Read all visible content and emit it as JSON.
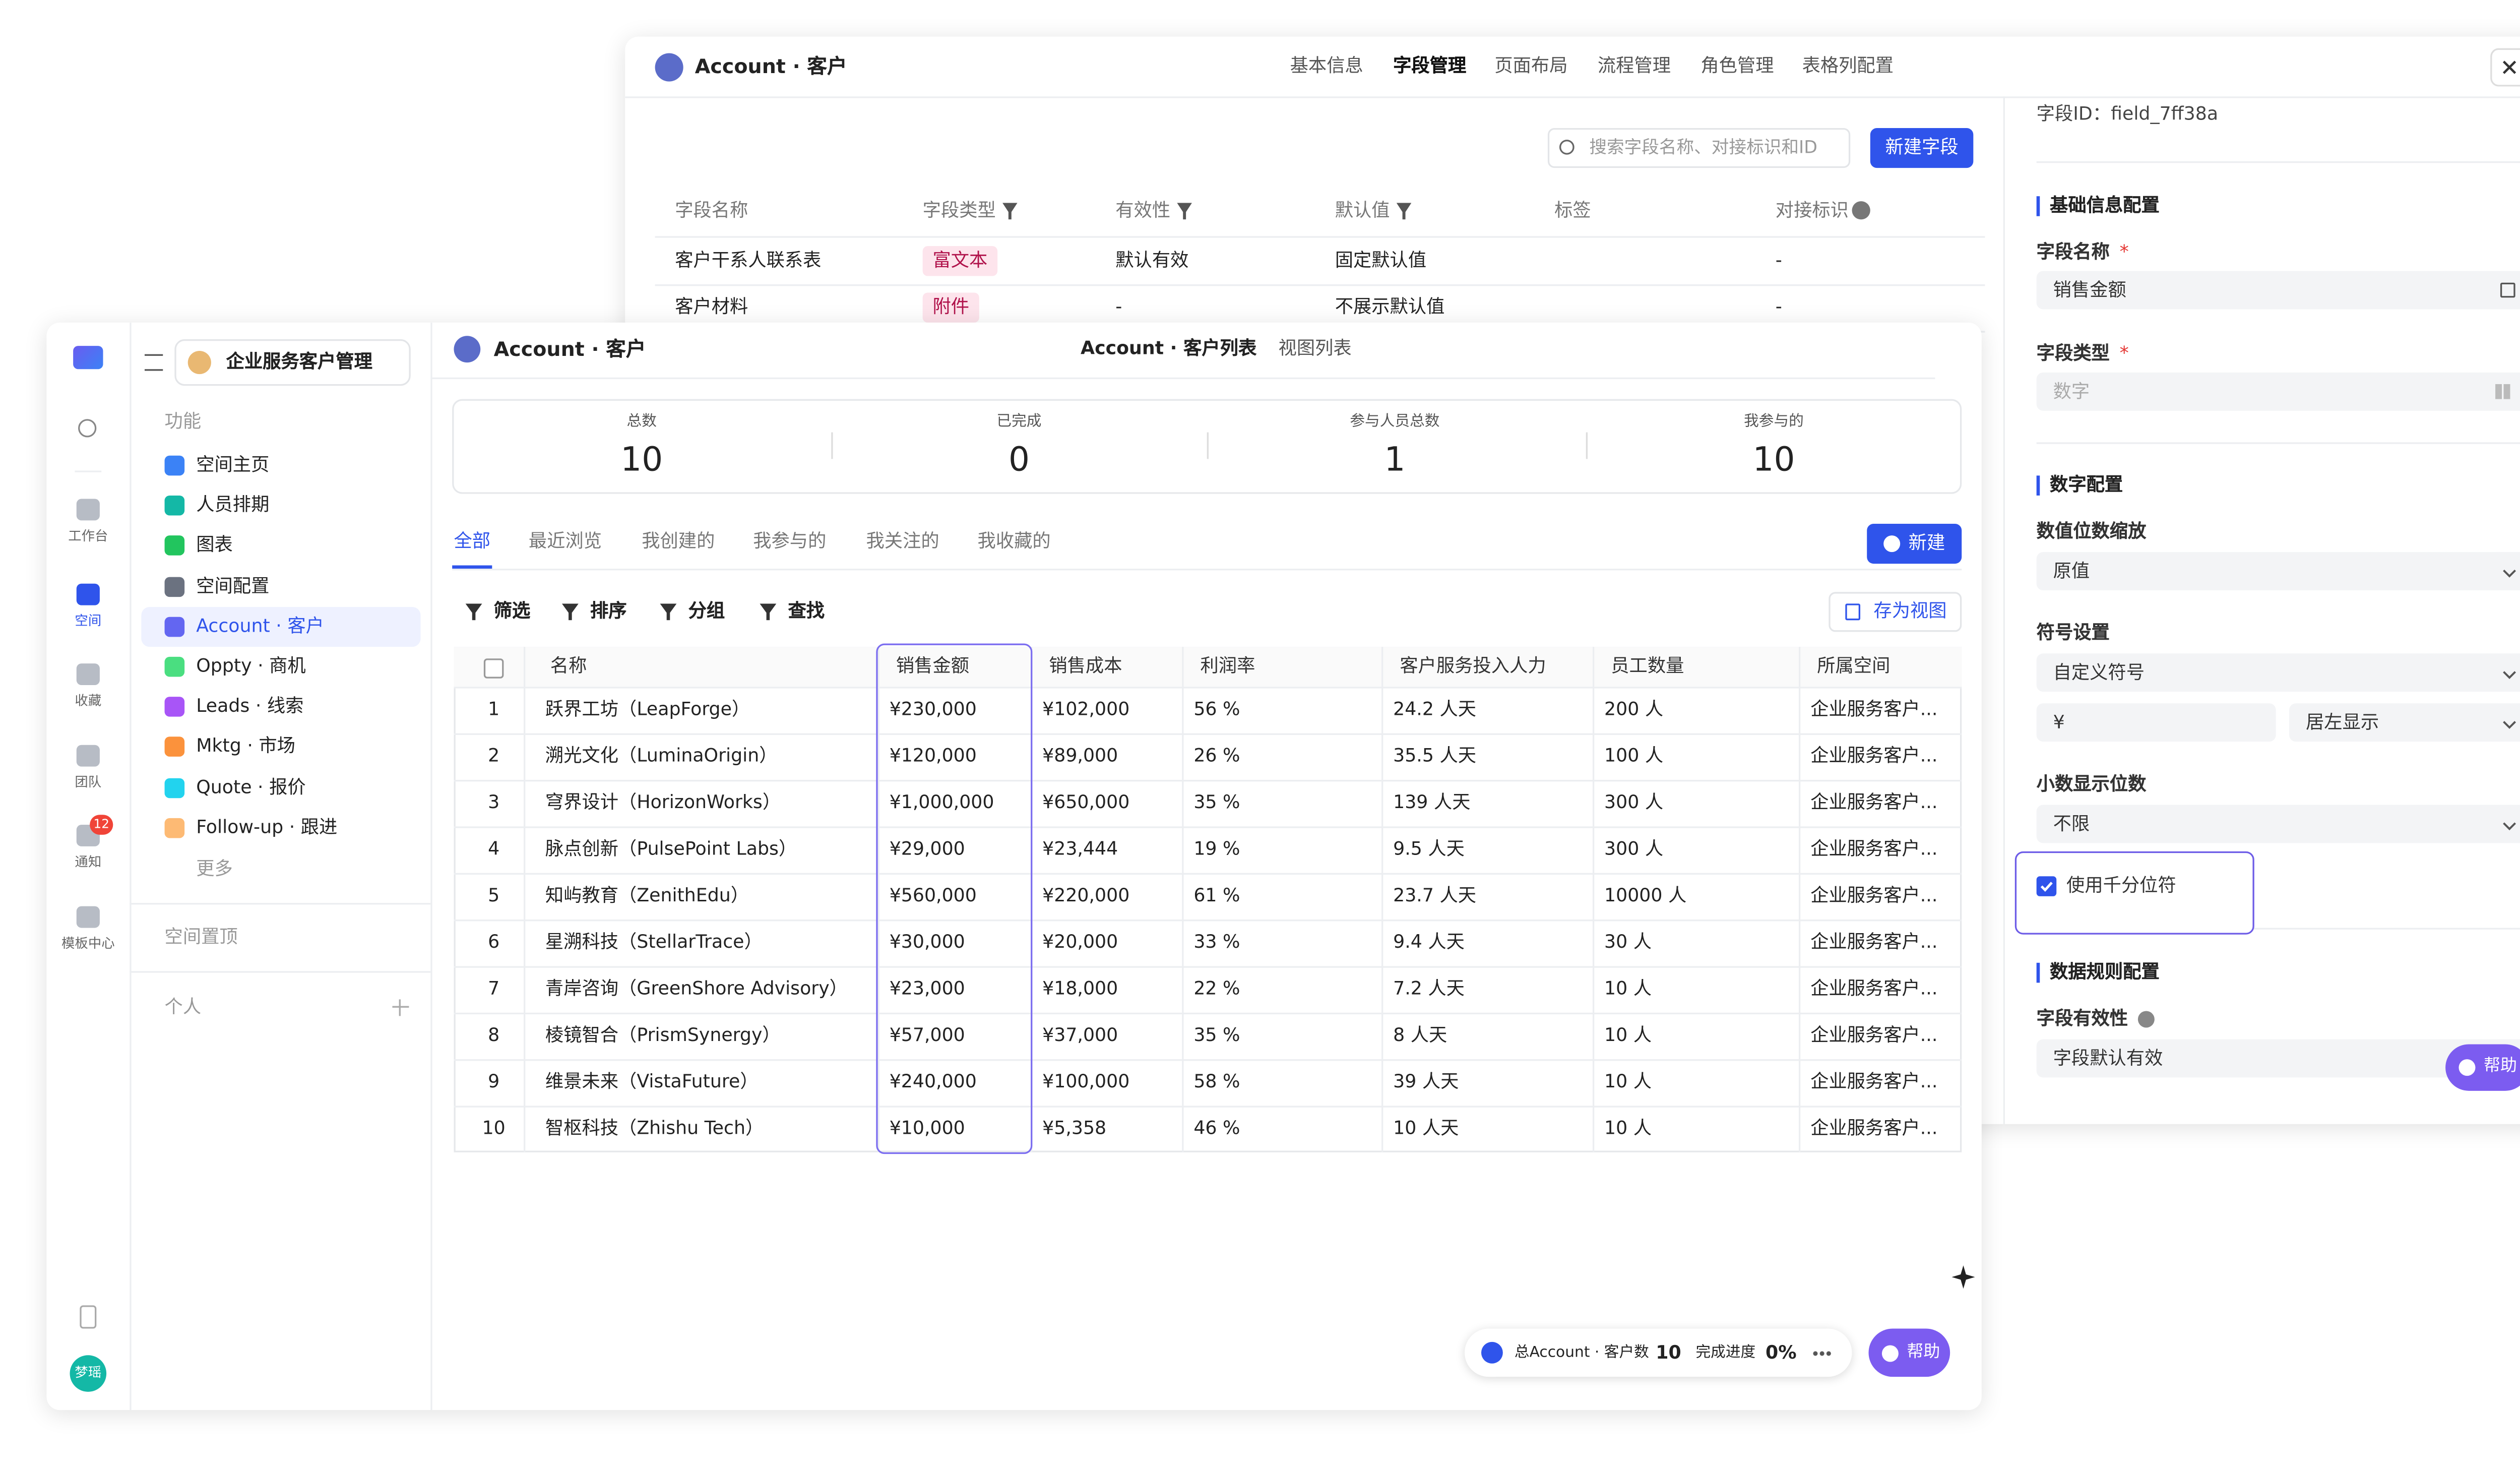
{
  "back_window": {
    "title": "Account · 客户",
    "tabs": [
      "基本信息",
      "字段管理",
      "页面布局",
      "流程管理",
      "角色管理",
      "表格列配置"
    ],
    "search_placeholder": "搜索字段名称、对接标识和ID",
    "new_field_button": "新建字段",
    "columns": [
      "字段名称",
      "字段类型",
      "有效性",
      "默认值",
      "标签",
      "对接标识"
    ],
    "rows": [
      {
        "name": "客户干系人联系表",
        "type": "富文本",
        "validity": "默认有效",
        "default": "固定默认值",
        "key": "-"
      },
      {
        "name": "客户材料",
        "type": "附件",
        "validity": "-",
        "default": "不展示默认值",
        "key": "-"
      }
    ]
  },
  "field_panel": {
    "field_id": "字段ID：field_7ff38a",
    "required_mark": "*",
    "basic": {
      "title": "基础信息配置",
      "name_label": "字段名称",
      "name_value": "销售金额",
      "type_label": "字段类型",
      "type_placeholder": "数字"
    },
    "number": {
      "title": "数字配置",
      "scale_label": "数值位数缩放",
      "scale_value": "原值",
      "symbol_label": "符号设置",
      "symbol_value": "自定义符号",
      "symbol_input": "¥",
      "symbol_position": "居左显示",
      "decimal_label": "小数显示位数",
      "decimal_value": "不限",
      "thousands_checkbox": "使用千分位符"
    },
    "rules": {
      "title": "数据规则配置",
      "validity_label": "字段有效性",
      "validity_value": "字段默认有效"
    },
    "help_button": "帮助"
  },
  "rail": {
    "items": [
      "工作台",
      "空间",
      "收藏",
      "团队",
      "通知",
      "模板中心"
    ],
    "notification_badge": "12",
    "avatar": "梦瑶"
  },
  "sidebar": {
    "workspace": "企业服务客户管理",
    "section_features": "功能",
    "nav": [
      {
        "label": "空间主页",
        "color": "#3b82f6"
      },
      {
        "label": "人员排期",
        "color": "#14b8a6"
      },
      {
        "label": "图表",
        "color": "#22c55e"
      },
      {
        "label": "空间配置",
        "color": "#6b7280"
      },
      {
        "label": "Account · 客户",
        "color": "#6366f1"
      },
      {
        "label": "Oppty · 商机",
        "color": "#4ade80"
      },
      {
        "label": "Leads · 线索",
        "color": "#a855f7"
      },
      {
        "label": "Mktg · 市场",
        "color": "#fb923c"
      },
      {
        "label": "Quote · 报价",
        "color": "#22d3ee"
      },
      {
        "label": "Follow-up · 跟进",
        "color": "#fdba74"
      }
    ],
    "more": "更多",
    "pinned": "空间置顶",
    "personal": "个人"
  },
  "main": {
    "title": "Account · 客户",
    "tabs": [
      "Account · 客户列表",
      "视图列表"
    ],
    "stats": [
      {
        "label": "总数",
        "value": 10
      },
      {
        "label": "已完成",
        "value": 0
      },
      {
        "label": "参与人员总数",
        "value": 1
      },
      {
        "label": "我参与的",
        "value": 10
      }
    ],
    "view_tabs": [
      "全部",
      "最近浏览",
      "我创建的",
      "我参与的",
      "我关注的",
      "我收藏的"
    ],
    "new_button": "新建",
    "toolbar": [
      "筛选",
      "排序",
      "分组",
      "查找"
    ],
    "save_view": "存为视图",
    "columns": [
      "名称",
      "销售金额",
      "销售成本",
      "利润率",
      "客户服务投入人力",
      "员工数量",
      "所属空间"
    ],
    "rows": [
      [
        "1",
        "跃界工坊（LeapForge）",
        "¥230,000",
        "¥102,000",
        "56 %",
        "24.2 人天",
        "200 人",
        "企业服务客户..."
      ],
      [
        "2",
        "溯光文化（LuminaOrigin）",
        "¥120,000",
        "¥89,000",
        "26 %",
        "35.5 人天",
        "100 人",
        "企业服务客户..."
      ],
      [
        "3",
        "穹界设计（HorizonWorks）",
        "¥1,000,000",
        "¥650,000",
        "35 %",
        "139 人天",
        "300 人",
        "企业服务客户..."
      ],
      [
        "4",
        "脉点创新（PulsePoint Labs）",
        "¥29,000",
        "¥23,444",
        "19 %",
        "9.5 人天",
        "300 人",
        "企业服务客户..."
      ],
      [
        "5",
        "知屿教育（ZenithEdu）",
        "¥560,000",
        "¥220,000",
        "61 %",
        "23.7 人天",
        "10000 人",
        "企业服务客户..."
      ],
      [
        "6",
        "星溯科技（StellarTrace）",
        "¥30,000",
        "¥20,000",
        "33 %",
        "9.4 人天",
        "30 人",
        "企业服务客户..."
      ],
      [
        "7",
        "青岸咨询（GreenShore Advisory）",
        "¥23,000",
        "¥18,000",
        "22 %",
        "7.2 人天",
        "10 人",
        "企业服务客户..."
      ],
      [
        "8",
        "棱镜智合（PrismSynergy）",
        "¥57,000",
        "¥37,000",
        "35 %",
        "8 人天",
        "10 人",
        "企业服务客户..."
      ],
      [
        "9",
        "维景未来（VistaFuture）",
        "¥240,000",
        "¥100,000",
        "58 %",
        "39 人天",
        "10 人",
        "企业服务客户..."
      ],
      [
        "10",
        "智枢科技（Zhishu Tech）",
        "¥10,000",
        "¥5,358",
        "46 %",
        "10 人天",
        "10 人",
        "企业服务客户..."
      ]
    ],
    "footer": {
      "total_label": "总Account · 客户数",
      "total_value": 10,
      "progress_label": "完成进度",
      "progress_value": "0%"
    },
    "help_button": "帮助"
  }
}
